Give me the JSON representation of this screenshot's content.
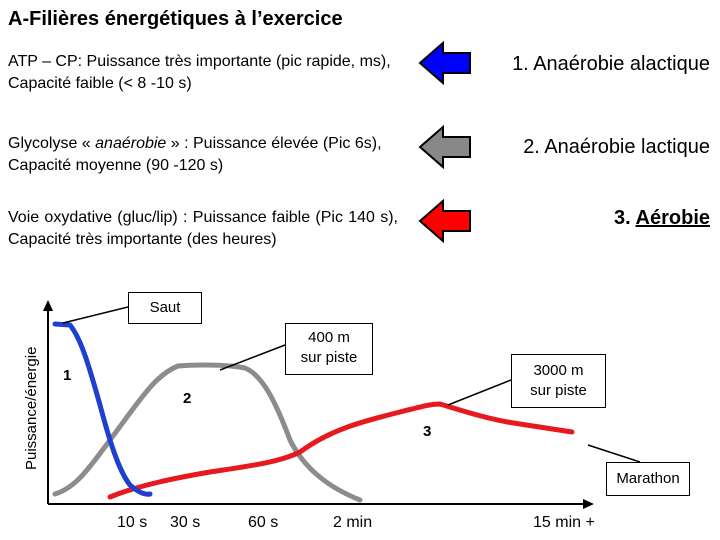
{
  "title": "A-Filières énergétiques à l’exercice",
  "rows": [
    {
      "text_a": "ATP – CP: Puissance très importante (pic rapide, ms), Capacité faible (< 8 -10 s)",
      "label": "1. Anaérobie alactique",
      "arrow_color": "#0000ff"
    },
    {
      "text_a": "Glycolyse « ",
      "text_em": "anaérobie",
      "text_b": " » : Puissance élevée (Pic 6s), Capacité moyenne (90 -120 s)",
      "label": "2. Anaérobie lactique",
      "arrow_color": "#888888"
    },
    {
      "text_a": "Voie oxydative (gluc/lip) : Puissance faible (Pic 140 s), Capacité très importante (des heures)",
      "label_num": "3. ",
      "label_word": "Aérobie",
      "arrow_color": "#ff0000"
    }
  ],
  "graph": {
    "y_axis_label": "Puissance/énergie",
    "x_ticks": [
      "10 s",
      "30 s",
      "60 s",
      "2 min",
      "15 min +"
    ],
    "callouts": {
      "saut": "Saut",
      "m400_line1": "400 m",
      "m400_line2": "sur piste",
      "m3000_line1": "3000 m",
      "m3000_line2": "sur piste",
      "marathon": "Marathon"
    },
    "curve_numbers": [
      "1",
      "2",
      "3"
    ],
    "colors": {
      "curve1": "#1f3fd0",
      "curve2": "#8c8c8c",
      "curve3": "#e8191e"
    }
  }
}
